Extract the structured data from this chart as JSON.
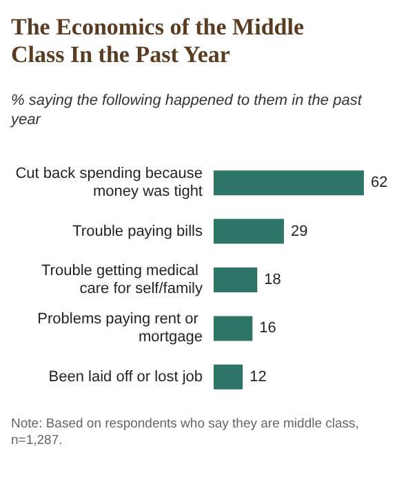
{
  "chart_data": {
    "type": "bar",
    "orientation": "horizontal",
    "title": "The Economics of the Middle Class In the Past Year",
    "subtitle": "% saying the following happened to them in the past year",
    "categories": [
      "Cut back spending because money was tight",
      "Trouble paying bills",
      "Trouble getting medical care for self/family",
      "Problems paying rent or mortgage",
      "Been laid off or lost job"
    ],
    "values": [
      62,
      29,
      18,
      16,
      12
    ],
    "color": "#2d7667",
    "data_labels": true,
    "annotations": [
      "Note: Based on respondents who say they are middle class, n=1,287."
    ]
  }
}
